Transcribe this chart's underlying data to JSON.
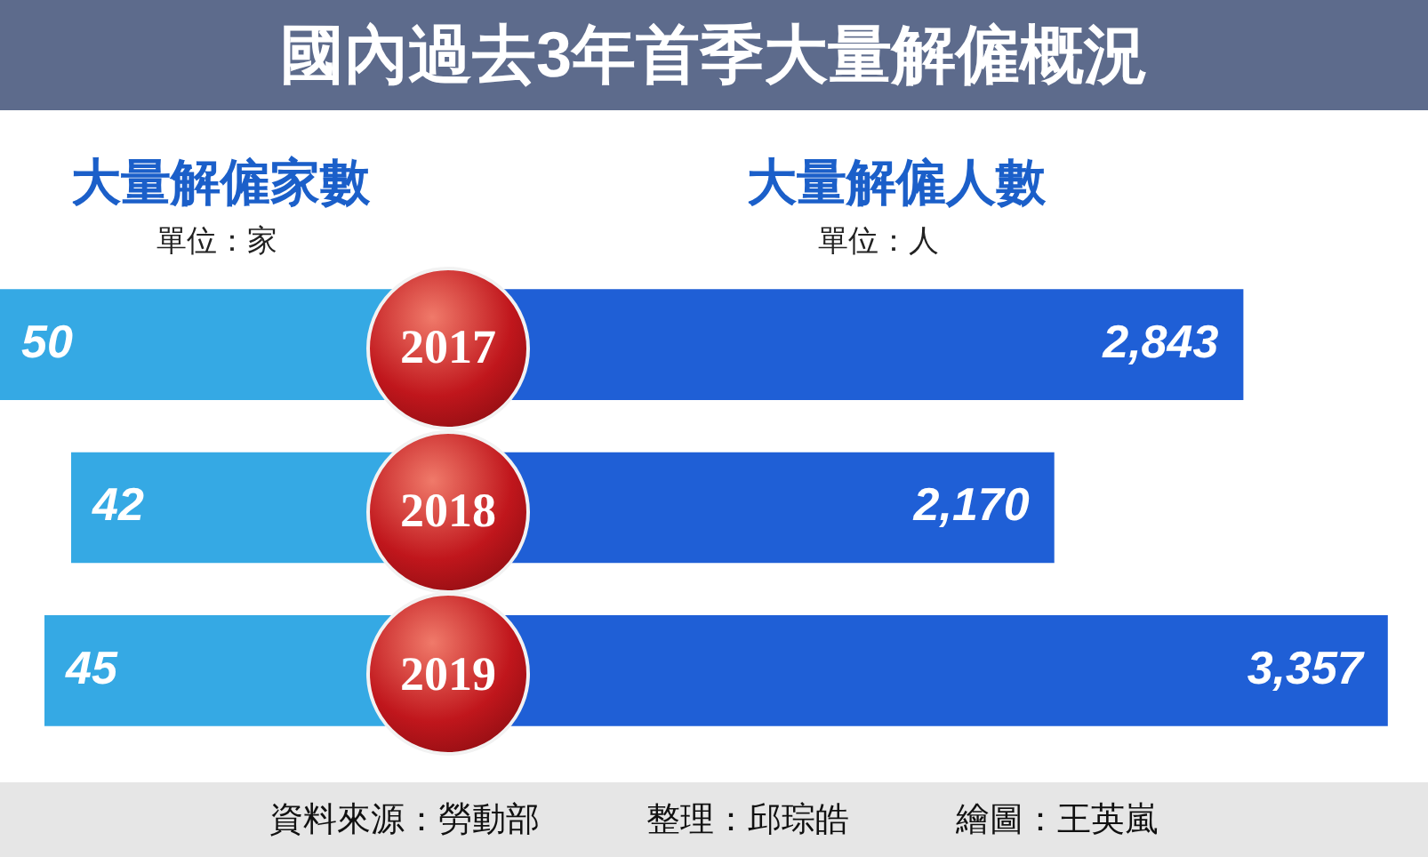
{
  "chart_data": [
    {
      "type": "bar",
      "orientation": "horizontal",
      "title": "大量解僱家數",
      "subtitle": "單位：家",
      "categories": [
        "2017",
        "2018",
        "2019"
      ],
      "values": [
        50,
        42,
        45
      ],
      "color": "#35a9e4",
      "data_labels": true,
      "legend": false,
      "annotations": [
        "國內過去3年首季大量解僱概況",
        "資料來源：勞動部",
        "整理：邱琮皓",
        "繪圖：王英嵐"
      ]
    },
    {
      "type": "bar",
      "orientation": "horizontal",
      "title": "大量解僱人數",
      "subtitle": "單位：人",
      "categories": [
        "2017",
        "2018",
        "2019"
      ],
      "values": [
        2843,
        2170,
        3357
      ],
      "value_labels": [
        "2,843",
        "2,170",
        "3,357"
      ],
      "color": "#1f5fd6",
      "legend": false,
      "tick_labels": false
    }
  ]
}
